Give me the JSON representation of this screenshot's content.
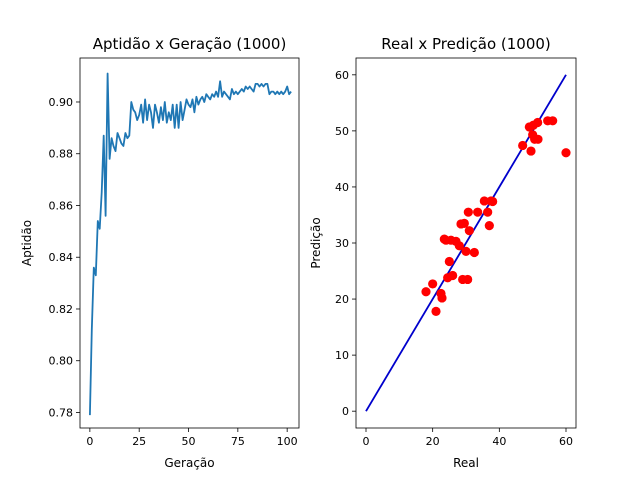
{
  "chart_data": [
    {
      "type": "line",
      "title": "Aptidão x Geração (1000)",
      "xlabel": "Geração",
      "ylabel": "Aptidão",
      "xlim": [
        -5,
        106
      ],
      "ylim": [
        0.774,
        0.917
      ],
      "xticks": [
        "0",
        "25",
        "50",
        "75",
        "100"
      ],
      "xtick_values": [
        0,
        25,
        50,
        75,
        100
      ],
      "yticks": [
        "0.78",
        "0.80",
        "0.82",
        "0.84",
        "0.86",
        "0.88",
        "0.90"
      ],
      "ytick_values": [
        0.78,
        0.8,
        0.82,
        0.84,
        0.86,
        0.88,
        0.9
      ],
      "color": "#1f77b4",
      "series": [
        {
          "x": [
            0,
            1,
            2,
            3,
            4,
            5,
            6,
            7,
            8,
            9,
            10,
            11,
            12,
            13,
            14,
            15,
            16,
            17,
            18,
            19,
            20,
            21,
            22,
            23,
            24,
            25,
            26,
            27,
            28,
            29,
            30,
            31,
            32,
            33,
            34,
            35,
            36,
            37,
            38,
            39,
            40,
            41,
            42,
            43,
            44,
            45,
            46,
            47,
            48,
            49,
            50,
            51,
            52,
            53,
            54,
            55,
            56,
            57,
            58,
            59,
            60,
            61,
            62,
            63,
            64,
            65,
            66,
            67,
            68,
            69,
            70,
            71,
            72,
            73,
            74,
            75,
            76,
            77,
            78,
            79,
            80,
            81,
            82,
            83,
            84,
            85,
            86,
            87,
            88,
            89,
            90,
            91,
            92,
            93,
            94,
            95,
            96,
            97,
            98,
            99,
            100,
            101,
            102
          ],
          "y": [
            0.779,
            0.812,
            0.836,
            0.833,
            0.854,
            0.851,
            0.865,
            0.887,
            0.856,
            0.911,
            0.878,
            0.886,
            0.883,
            0.881,
            0.888,
            0.886,
            0.884,
            0.883,
            0.888,
            0.886,
            0.887,
            0.9,
            0.897,
            0.896,
            0.893,
            0.895,
            0.899,
            0.892,
            0.901,
            0.893,
            0.899,
            0.896,
            0.89,
            0.899,
            0.896,
            0.892,
            0.898,
            0.893,
            0.9,
            0.892,
            0.896,
            0.893,
            0.899,
            0.89,
            0.899,
            0.89,
            0.9,
            0.893,
            0.897,
            0.901,
            0.899,
            0.898,
            0.901,
            0.896,
            0.902,
            0.899,
            0.901,
            0.902,
            0.9,
            0.903,
            0.902,
            0.901,
            0.903,
            0.902,
            0.904,
            0.902,
            0.908,
            0.902,
            0.904,
            0.903,
            0.902,
            0.901,
            0.905,
            0.903,
            0.904,
            0.903,
            0.904,
            0.905,
            0.904,
            0.906,
            0.905,
            0.906,
            0.905,
            0.904,
            0.907,
            0.907,
            0.906,
            0.907,
            0.906,
            0.907,
            0.907,
            0.903,
            0.904,
            0.904,
            0.903,
            0.904,
            0.903,
            0.904,
            0.903,
            0.904,
            0.906,
            0.903,
            0.904
          ]
        }
      ]
    },
    {
      "type": "scatter",
      "title": "Real x Predição (1000)",
      "xlabel": "Real",
      "ylabel": "Predição",
      "xlim": [
        -3,
        63
      ],
      "ylim": [
        -3,
        63
      ],
      "xticks": [
        "0",
        "20",
        "40",
        "60"
      ],
      "xtick_values": [
        0,
        20,
        40,
        60
      ],
      "yticks": [
        "0",
        "10",
        "20",
        "30",
        "40",
        "50",
        "60"
      ],
      "ytick_values": [
        0,
        10,
        20,
        30,
        40,
        50,
        60
      ],
      "points_color": "#ff0000",
      "line_color": "#0000cc",
      "reference_line": {
        "x": [
          0,
          60
        ],
        "y": [
          0,
          60
        ]
      },
      "points": [
        [
          18,
          21.3
        ],
        [
          20,
          22.7
        ],
        [
          21,
          17.8
        ],
        [
          22.5,
          21
        ],
        [
          22.8,
          20.2
        ],
        [
          23.5,
          30.7
        ],
        [
          24,
          30.5
        ],
        [
          24.5,
          23.8
        ],
        [
          25,
          26.7
        ],
        [
          25.5,
          30.5
        ],
        [
          26,
          24.2
        ],
        [
          27,
          30.3
        ],
        [
          28,
          29.5
        ],
        [
          28.5,
          33.4
        ],
        [
          29,
          23.5
        ],
        [
          29.5,
          33.5
        ],
        [
          30,
          28.5
        ],
        [
          30.5,
          23.5
        ],
        [
          31,
          32.2
        ],
        [
          30.7,
          35.5
        ],
        [
          32.5,
          28.3
        ],
        [
          33.5,
          35.5
        ],
        [
          35.5,
          37.5
        ],
        [
          36.5,
          35.5
        ],
        [
          37,
          33.1
        ],
        [
          38,
          37.4
        ],
        [
          37.5,
          37.5
        ],
        [
          47,
          47.4
        ],
        [
          49,
          50.7
        ],
        [
          49.5,
          46.4
        ],
        [
          50,
          49.3
        ],
        [
          50.2,
          51
        ],
        [
          50.6,
          48.5
        ],
        [
          51.5,
          51.5
        ],
        [
          51.6,
          48.5
        ],
        [
          54.5,
          51.8
        ],
        [
          56,
          51.8
        ],
        [
          60,
          46.1
        ]
      ]
    }
  ]
}
